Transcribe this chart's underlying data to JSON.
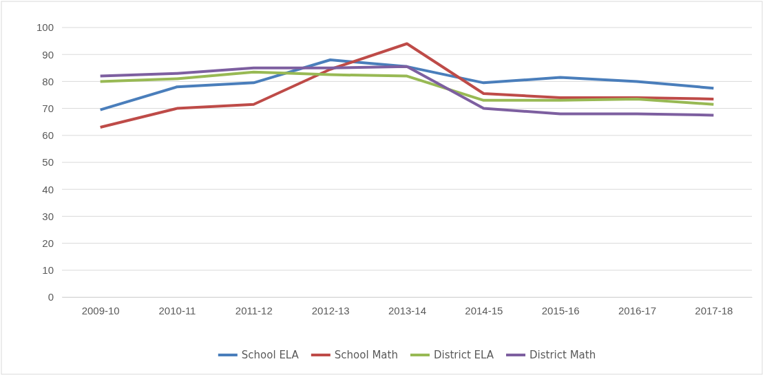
{
  "chart_data": {
    "type": "line",
    "categories": [
      "2009-10",
      "2010-11",
      "2011-12",
      "2012-13",
      "2013-14",
      "2014-15",
      "2015-16",
      "2016-17",
      "2017-18"
    ],
    "series": [
      {
        "name": "School ELA",
        "color": "#4a7ebb",
        "values": [
          69.5,
          78,
          79.5,
          88,
          85.5,
          79.5,
          81.5,
          80,
          77.5
        ]
      },
      {
        "name": "School Math",
        "color": "#be4b48",
        "values": [
          63,
          70,
          71.5,
          84.5,
          94,
          75.5,
          74,
          74,
          73.5
        ]
      },
      {
        "name": "District ELA",
        "color": "#98b954",
        "values": [
          80,
          81,
          83.5,
          82.5,
          82,
          73,
          73,
          73.5,
          71.5
        ]
      },
      {
        "name": "District Math",
        "color": "#7d5fa0",
        "values": [
          82,
          83,
          85,
          85,
          85.5,
          70,
          68,
          68,
          67.5
        ]
      }
    ],
    "ylim": [
      0,
      100
    ],
    "yticks": [
      0,
      10,
      20,
      30,
      40,
      50,
      60,
      70,
      80,
      90,
      100
    ],
    "grid": "y",
    "legend": "bottom",
    "marker": "none",
    "line_style": "solid"
  }
}
